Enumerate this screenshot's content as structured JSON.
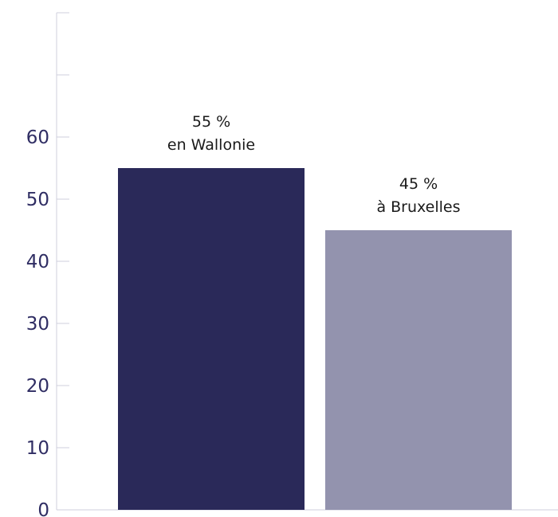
{
  "chart_data": {
    "type": "bar",
    "categories": [
      "en Wallonie",
      "à Bruxelles"
    ],
    "values": [
      55,
      45
    ],
    "labels": [
      {
        "value_text": "55 %",
        "category_text": "en Wallonie"
      },
      {
        "value_text": "45 %",
        "category_text": "à Bruxelles"
      }
    ],
    "ylim": [
      0,
      80
    ],
    "yticks": [
      0,
      10,
      20,
      30,
      40,
      50,
      60
    ],
    "ytick_labels": [
      "0",
      "10",
      "20",
      "30",
      "40",
      "50",
      "60"
    ],
    "grid": false,
    "colors": {
      "bars": [
        "#2a2959",
        "#9393ae"
      ],
      "tick_text": "#2f2d63",
      "axis": "#cfcfdc"
    }
  }
}
